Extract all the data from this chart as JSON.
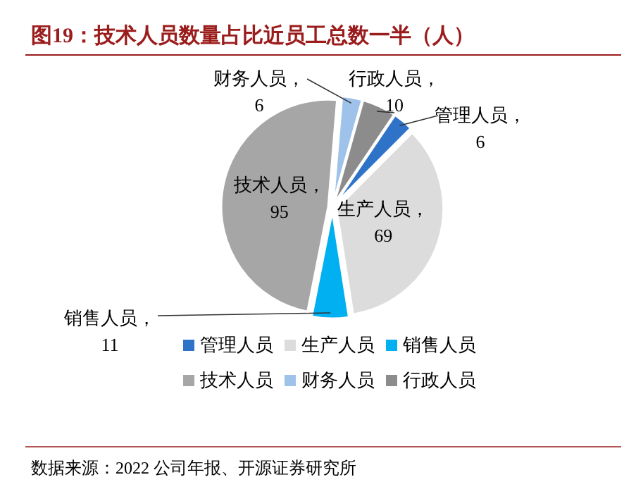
{
  "chart_data": {
    "type": "pie",
    "title": "图19：技术人员数量占比近员工总数一半（人）",
    "categories": [
      "管理人员",
      "生产人员",
      "销售人员",
      "技术人员",
      "财务人员",
      "行政人员"
    ],
    "values": [
      6,
      69,
      11,
      95,
      6,
      10
    ],
    "colors": [
      "#2e73c8",
      "#dcdcdc",
      "#00b0f0",
      "#a6a6a6",
      "#9fc2ea",
      "#8c8c8c"
    ],
    "value_labels": [
      "管理人员，6",
      "生产人员，69",
      "销售人员，11",
      "技术人员，95",
      "财务人员，6",
      "行政人员，10"
    ],
    "legend": "bottom",
    "annotations": [
      "数据来源：2022 公司年报、开源证券研究所"
    ]
  }
}
